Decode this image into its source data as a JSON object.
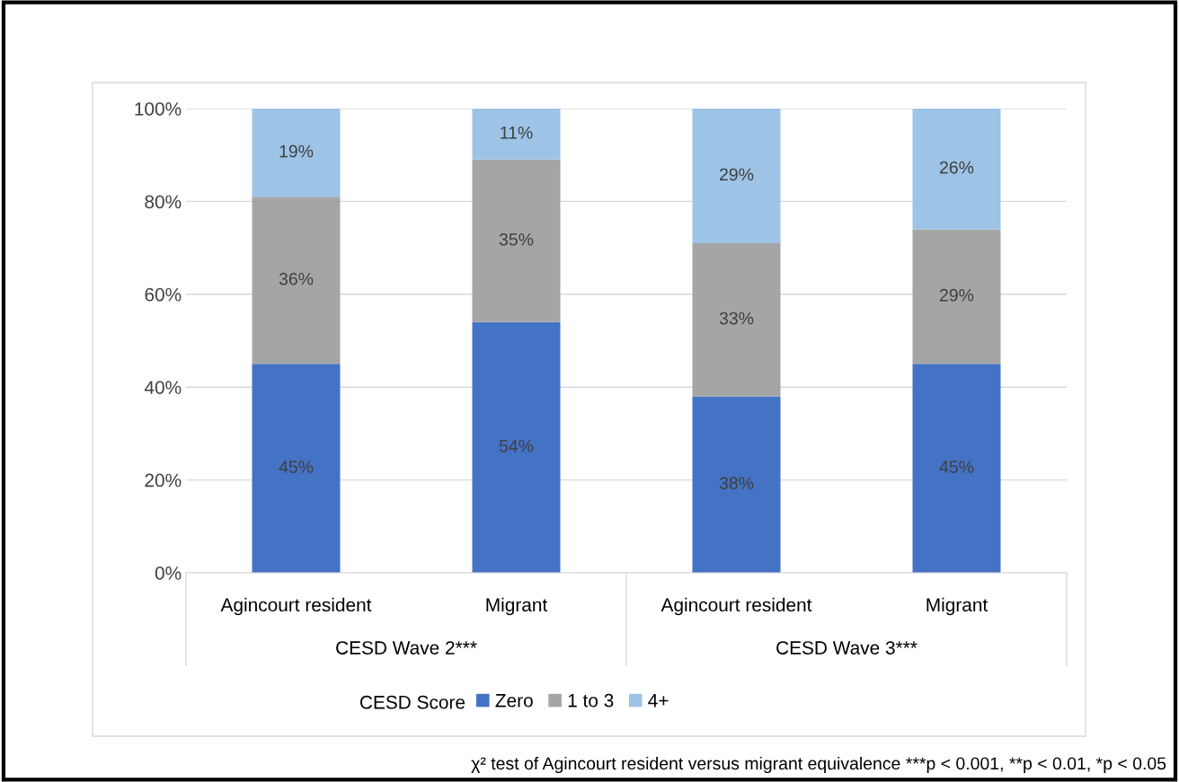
{
  "chart_data": {
    "type": "bar",
    "stacked": true,
    "categories": [
      "Agincourt resident",
      "Migrant",
      "Agincourt resident",
      "Migrant"
    ],
    "series": [
      {
        "name": "Zero",
        "color": "#4472c4",
        "values": [
          45,
          54,
          38,
          45
        ],
        "value_labels": [
          "45%",
          "54%",
          "38%",
          "45%"
        ]
      },
      {
        "name": "1 to 3",
        "color": "#a5a5a5",
        "values": [
          36,
          35,
          33,
          29
        ],
        "value_labels": [
          "36%",
          "35%",
          "33%",
          "29%"
        ]
      },
      {
        "name": "4+",
        "color": "#9dc3e6",
        "values": [
          19,
          11,
          29,
          26
        ],
        "value_labels": [
          "19%",
          "11%",
          "29%",
          "26%"
        ]
      }
    ],
    "ylim": [
      0,
      100
    ],
    "yticks": [
      {
        "value": 0,
        "label": "0%"
      },
      {
        "value": 20,
        "label": "20%"
      },
      {
        "value": 40,
        "label": "40%"
      },
      {
        "value": 60,
        "label": "60%"
      },
      {
        "value": 80,
        "label": "80%"
      },
      {
        "value": 100,
        "label": "100%"
      }
    ],
    "grid": "y",
    "legend": "bottom",
    "legend_title": "CESD Score",
    "annotations": [
      "CESD Wave 2***",
      "CESD Wave 3***",
      "χ² test of Agincourt resident versus migrant equivalence ***p < 0.001, **p < 0.01, *p < 0.05"
    ]
  }
}
